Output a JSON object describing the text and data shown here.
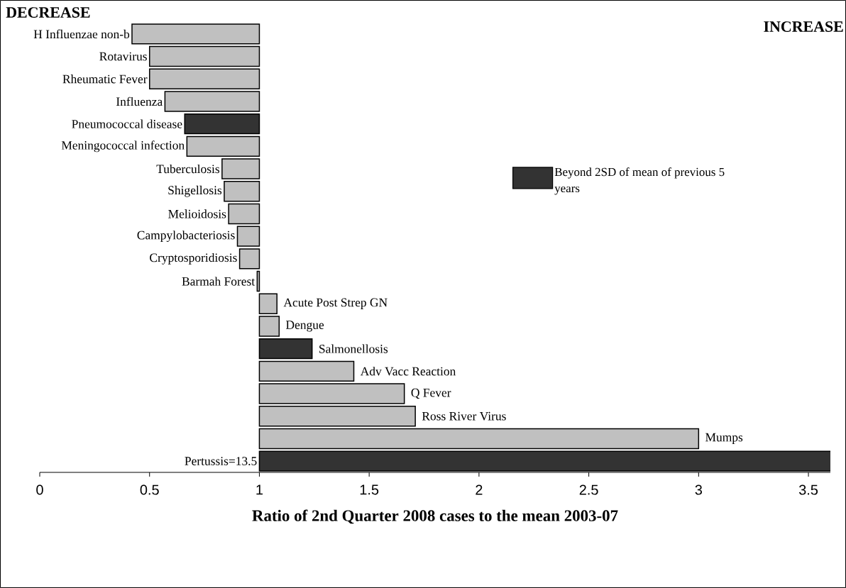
{
  "chart_data": {
    "type": "bar",
    "orientation": "horizontal",
    "xlabel": "Ratio of 2nd Quarter 2008 cases to the mean 2003-07",
    "annotations": [
      "DECREASE",
      "INCREASE"
    ],
    "categories": [
      "H Influenzae non-b",
      "Rotavirus",
      "Rheumatic Fever",
      "Influenza",
      "Pneumococcal disease",
      "Meningococcal infection",
      "Tuberculosis",
      "Shigellosis",
      "Melioidosis",
      "Campylobacteriosis",
      "Cryptosporidiosis",
      "Barmah Forest",
      "Acute Post Strep GN",
      "Dengue",
      "Salmonellosis",
      "Adv Vacc Reaction",
      "Q Fever",
      "Ross River Virus",
      "Mumps",
      "Pertussis=13.5"
    ],
    "series": [
      {
        "name": "Beyond 2SD of mean of previous 5 years",
        "color": "#333333",
        "base": [
          null,
          null,
          null,
          null,
          1,
          null,
          null,
          null,
          null,
          null,
          null,
          null,
          null,
          null,
          1,
          null,
          null,
          null,
          null,
          1
        ],
        "values": [
          null,
          null,
          null,
          null,
          -0.34,
          null,
          null,
          null,
          null,
          null,
          null,
          null,
          null,
          null,
          0.24,
          null,
          null,
          null,
          null,
          12.5
        ]
      },
      {
        "color": "#c0c0c0",
        "base": [
          1,
          1,
          1,
          1,
          null,
          1,
          1,
          1,
          1,
          1,
          1,
          1,
          1,
          1,
          null,
          1,
          1,
          1,
          1,
          null
        ],
        "values": [
          -0.58,
          -0.5,
          -0.5,
          -0.43,
          null,
          -0.33,
          -0.17,
          -0.16,
          -0.14,
          -0.1,
          -0.09,
          -0.01,
          0.08,
          0.09,
          null,
          0.43,
          0.66,
          0.71,
          2.0,
          null
        ]
      }
    ],
    "xlim": [
      0,
      3.6
    ],
    "xticks": [
      0,
      0.5,
      1,
      1.5,
      2,
      2.5,
      3,
      3.5
    ],
    "legend": "top right"
  }
}
